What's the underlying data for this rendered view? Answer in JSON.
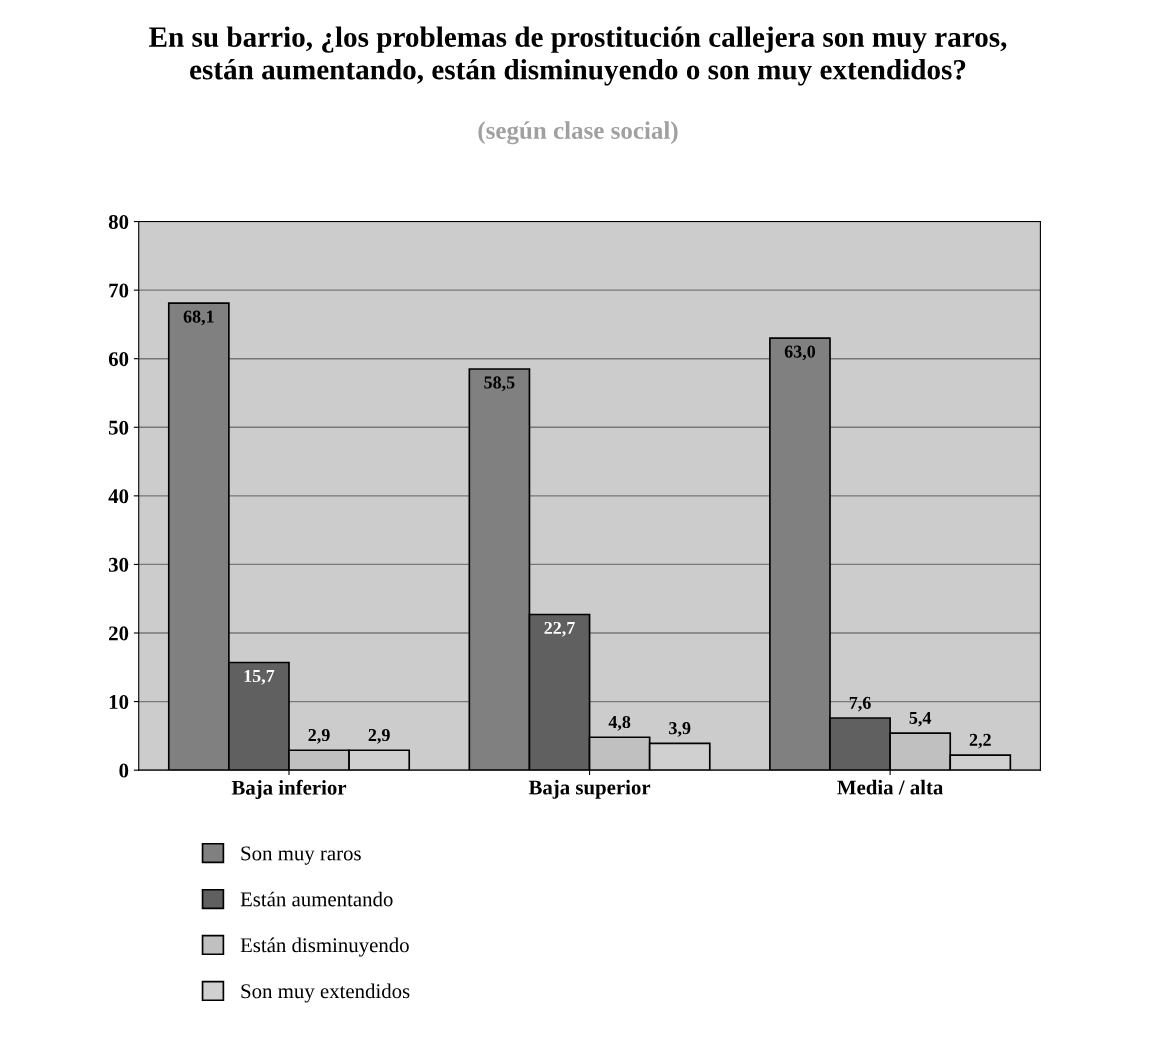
{
  "chart_data": {
    "type": "bar",
    "title": "En su barrio, ¿los problemas de prostitución callejera son muy raros,\nestán aumentando, están disminuyendo o son muy extendidos?",
    "subtitle": "(según clase social)",
    "categories": [
      "Baja inferior",
      "Baja superior",
      "Media / alta"
    ],
    "series": [
      {
        "name": "Son muy raros",
        "color": "#808080",
        "values": [
          68.1,
          58.5,
          63.0
        ],
        "value_labels": [
          "68,1",
          "58,5",
          "63,0"
        ]
      },
      {
        "name": "Están aumentando",
        "color": "#606060",
        "values": [
          15.7,
          22.7,
          7.6
        ],
        "value_labels": [
          "15,7",
          "22,7",
          "7,6"
        ]
      },
      {
        "name": "Están disminuyendo",
        "color": "#c0c0c0",
        "values": [
          2.9,
          4.8,
          5.4
        ],
        "value_labels": [
          "2,9",
          "4,8",
          "5,4"
        ]
      },
      {
        "name": "Son muy extendidos",
        "color": "#d0d0d0",
        "values": [
          2.9,
          3.9,
          2.2
        ],
        "value_labels": [
          "2,9",
          "3,9",
          "2,2"
        ]
      }
    ],
    "ylim": [
      0,
      80
    ],
    "yticks": [
      0,
      10,
      20,
      30,
      40,
      50,
      60,
      70,
      80
    ],
    "grid": "y",
    "legend": "bottom left"
  }
}
